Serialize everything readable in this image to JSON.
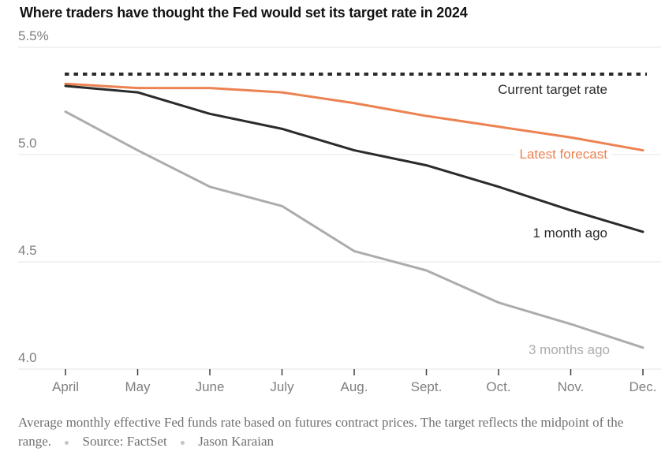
{
  "title": "Where traders have thought the Fed would set its target rate in 2024",
  "footer": {
    "note": "Average monthly effective Fed funds rate based on futures contract prices. The target reflects the midpoint of the range.",
    "source": "Source: FactSet",
    "byline": "Jason Karaian"
  },
  "colors": {
    "orange": "#ec8252",
    "black": "#2b2b2b",
    "gray": "#acacac",
    "gridline": "#e4e4e4",
    "tick": "#3f3f3f",
    "axis_text": "#7f7f7f"
  },
  "chart_data": {
    "type": "line",
    "categories": [
      "April",
      "May",
      "June",
      "July",
      "Aug.",
      "Sept.",
      "Oct.",
      "Nov.",
      "Dec."
    ],
    "series": [
      {
        "name": "Current target rate",
        "color": "#2b2b2b",
        "style": "dashed",
        "values": [
          5.375,
          5.375,
          5.375,
          5.375,
          5.375,
          5.375,
          5.375,
          5.375,
          5.375
        ]
      },
      {
        "name": "Latest forecast",
        "color": "#ec8252",
        "style": "solid",
        "values": [
          5.33,
          5.31,
          5.31,
          5.29,
          5.24,
          5.18,
          5.13,
          5.08,
          5.02
        ]
      },
      {
        "name": "1 month ago",
        "color": "#2b2b2b",
        "style": "solid",
        "values": [
          5.32,
          5.29,
          5.19,
          5.12,
          5.02,
          4.95,
          4.85,
          4.74,
          4.64
        ]
      },
      {
        "name": "3 months ago",
        "color": "#acacac",
        "style": "solid",
        "values": [
          5.2,
          5.02,
          4.85,
          4.76,
          4.55,
          4.46,
          4.31,
          4.21,
          4.1
        ]
      }
    ],
    "ylim": [
      4.0,
      5.5
    ],
    "yticks": [
      {
        "value": 5.5,
        "label": "5.5%"
      },
      {
        "value": 5.0,
        "label": "5.0"
      },
      {
        "value": 4.5,
        "label": "4.5"
      },
      {
        "value": 4.0,
        "label": "4.0"
      }
    ],
    "grid": true,
    "legend_position": "inline-annotations",
    "xlabel": "",
    "ylabel": ""
  }
}
